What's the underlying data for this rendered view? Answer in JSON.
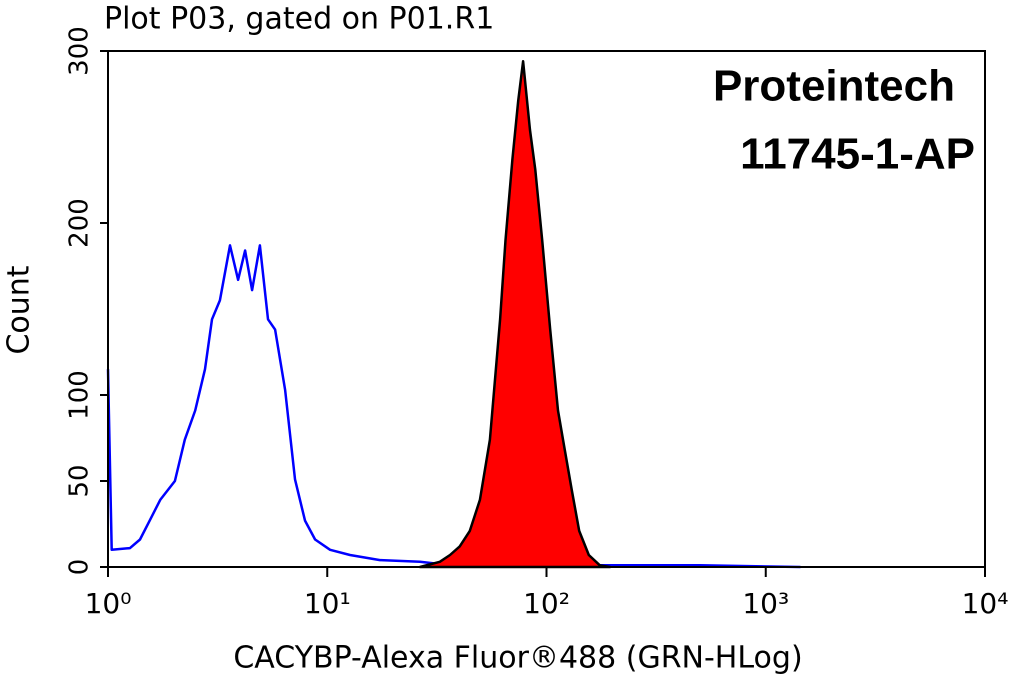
{
  "chart_data": {
    "type": "histogram-log",
    "title": "Plot P03, gated on P01.R1",
    "x_label": "CACYBP-Alexa Fluor®488 (GRN-HLog)",
    "y_label": "Count",
    "annotations": [
      "Proteintech",
      "11745-1-AP"
    ],
    "x_log": true,
    "xlim": [
      1,
      10000
    ],
    "xticks": [
      {
        "value": 1,
        "label": "10⁰"
      },
      {
        "value": 10,
        "label": "10¹"
      },
      {
        "value": 100,
        "label": "10²"
      },
      {
        "value": 1000,
        "label": "10³"
      },
      {
        "value": 10000,
        "label": "10⁴"
      }
    ],
    "ylim": [
      0,
      300
    ],
    "yticks": [
      0,
      50,
      100,
      200,
      300
    ],
    "series": [
      {
        "color": "#0000ff",
        "fill": false,
        "x": [
          1,
          1.04,
          1.26,
          1.4,
          1.55,
          1.73,
          2.02,
          2.24,
          2.5,
          2.77,
          2.98,
          3.24,
          3.6,
          3.92,
          4.22,
          4.54,
          4.93,
          5.37,
          5.78,
          6.42,
          7.13,
          7.92,
          8.8,
          10.3,
          12.7,
          17.4,
          26.5,
          36.3,
          61.4,
          501,
          1440
        ],
        "values": [
          115,
          10,
          11,
          16,
          27,
          39,
          50,
          74,
          91,
          115,
          144,
          155,
          187,
          167,
          184,
          161,
          187,
          144,
          138,
          103,
          51,
          27,
          16,
          10,
          7,
          4,
          3,
          1,
          1,
          1,
          0
        ]
      },
      {
        "color": "#ff0000",
        "edge_color": "#000000",
        "fill": true,
        "x": [
          26.5,
          32.6,
          36.3,
          40.2,
          44.7,
          49.7,
          55.2,
          61.4,
          65,
          69.9,
          74.3,
          78.2,
          84.1,
          88.9,
          95.6,
          104,
          112.8,
          121.2,
          130.3,
          141,
          156,
          175,
          195
        ],
        "values": [
          0,
          3,
          7,
          12,
          21,
          39,
          74,
          144,
          190,
          237,
          271,
          294,
          254,
          231,
          190,
          138,
          91,
          68,
          45,
          21,
          7,
          1,
          0
        ]
      }
    ]
  }
}
